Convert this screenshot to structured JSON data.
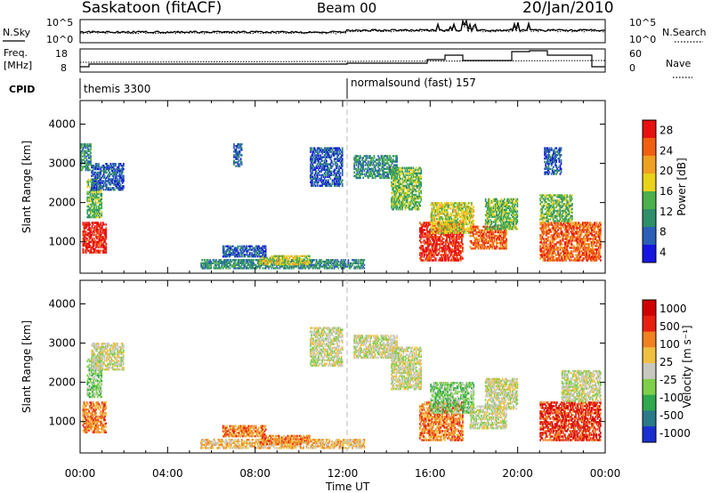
{
  "header": {
    "station": "Saskatoon (fitACF)",
    "beam": "Beam 00",
    "date": "20/Jan/2010"
  },
  "nsky_panel": {
    "left_label": "N.Sky",
    "left_ticks": [
      "10^5",
      "10^0"
    ],
    "right_ticks": [
      "10^5",
      "10^0"
    ],
    "right_label": "N.Search"
  },
  "freq_panel": {
    "left_label_line1": "Freq.",
    "left_label_line2": "[MHz]",
    "left_ticks": [
      "18",
      "8"
    ],
    "right_ticks": [
      "60",
      "0"
    ],
    "right_label": "Nave"
  },
  "cpid": {
    "label": "CPID",
    "segments": [
      {
        "text": "themis 3300"
      },
      {
        "text": "normalsound (fast) 157"
      }
    ]
  },
  "chart_data": [
    {
      "type": "heatmap",
      "panel": "power",
      "ylabel": "Slant Range [km]",
      "yticks": [
        "1000",
        "2000",
        "3000",
        "4000"
      ],
      "ylim": [
        200,
        4600
      ],
      "xlim": [
        0,
        24
      ],
      "xticks": [
        "00:00",
        "04:00",
        "08:00",
        "12:00",
        "16:00",
        "20:00",
        "00:00"
      ],
      "colorbar_label": "Power [dB]",
      "colorbar_ticks": [
        "28",
        "24",
        "20",
        "16",
        "12",
        "8",
        "4"
      ],
      "colors": [
        "#1616e0",
        "#2b5fb8",
        "#2f8f6a",
        "#4cb04c",
        "#e8d21a",
        "#f0a020",
        "#f06010",
        "#e81010"
      ],
      "regions": [
        {
          "t0": 0.1,
          "t1": 1.2,
          "r0": 700,
          "r1": 1500,
          "level": 7
        },
        {
          "t0": 0.3,
          "t1": 1.0,
          "r0": 1600,
          "r1": 2600,
          "level": 3
        },
        {
          "t0": 0.5,
          "t1": 2.0,
          "r0": 2300,
          "r1": 3000,
          "level": 1
        },
        {
          "t0": 0.0,
          "t1": 0.5,
          "r0": 2800,
          "r1": 3500,
          "level": 2
        },
        {
          "t0": 5.5,
          "t1": 13.0,
          "r0": 300,
          "r1": 550,
          "level": 2
        },
        {
          "t0": 8.2,
          "t1": 10.5,
          "r0": 400,
          "r1": 650,
          "level": 4
        },
        {
          "t0": 6.5,
          "t1": 8.5,
          "r0": 600,
          "r1": 900,
          "level": 1
        },
        {
          "t0": 7.0,
          "t1": 7.4,
          "r0": 2900,
          "r1": 3500,
          "level": 1
        },
        {
          "t0": 10.5,
          "t1": 12.0,
          "r0": 2400,
          "r1": 3400,
          "level": 1
        },
        {
          "t0": 12.5,
          "t1": 14.5,
          "r0": 2600,
          "r1": 3200,
          "level": 2
        },
        {
          "t0": 14.2,
          "t1": 15.6,
          "r0": 1800,
          "r1": 2900,
          "level": 3
        },
        {
          "t0": 15.5,
          "t1": 17.5,
          "r0": 500,
          "r1": 1500,
          "level": 7
        },
        {
          "t0": 16.0,
          "t1": 18.0,
          "r0": 1200,
          "r1": 2000,
          "level": 4
        },
        {
          "t0": 17.8,
          "t1": 19.5,
          "r0": 800,
          "r1": 1400,
          "level": 6
        },
        {
          "t0": 18.5,
          "t1": 20.0,
          "r0": 1300,
          "r1": 2100,
          "level": 3
        },
        {
          "t0": 21.0,
          "t1": 23.8,
          "r0": 500,
          "r1": 1500,
          "level": 6
        },
        {
          "t0": 21.0,
          "t1": 22.5,
          "r0": 1500,
          "r1": 2200,
          "level": 3
        },
        {
          "t0": 21.2,
          "t1": 22.0,
          "r0": 2700,
          "r1": 3400,
          "level": 1
        }
      ]
    },
    {
      "type": "heatmap",
      "panel": "velocity",
      "ylabel": "Slant Range [km]",
      "yticks": [
        "1000",
        "2000",
        "3000",
        "4000"
      ],
      "ylim": [
        200,
        4600
      ],
      "xlim": [
        0,
        24
      ],
      "xticks": [
        "00:00",
        "04:00",
        "08:00",
        "12:00",
        "16:00",
        "20:00",
        "00:00"
      ],
      "xlabel": "Time UT",
      "colorbar_label": "Velocity [m s⁻¹]",
      "colorbar_ticks": [
        "1000",
        "500",
        "100",
        "25",
        "-25",
        "-100",
        "-500",
        "-1000"
      ],
      "colors": [
        "#1a2fd0",
        "#2a7a8a",
        "#2fa84f",
        "#7ed04a",
        "#c8c8c0",
        "#f0c040",
        "#f08020",
        "#e82010",
        "#d00000"
      ],
      "regions": [
        {
          "t0": 0.1,
          "t1": 1.2,
          "r0": 700,
          "r1": 1500,
          "level": 6
        },
        {
          "t0": 0.3,
          "t1": 1.0,
          "r0": 1600,
          "r1": 2600,
          "level": 3
        },
        {
          "t0": 0.5,
          "t1": 2.0,
          "r0": 2300,
          "r1": 3000,
          "level": 4
        },
        {
          "t0": 5.5,
          "t1": 13.0,
          "r0": 300,
          "r1": 550,
          "level": 5
        },
        {
          "t0": 8.2,
          "t1": 10.5,
          "r0": 400,
          "r1": 650,
          "level": 6
        },
        {
          "t0": 6.5,
          "t1": 8.5,
          "r0": 600,
          "r1": 900,
          "level": 6
        },
        {
          "t0": 10.5,
          "t1": 12.0,
          "r0": 2400,
          "r1": 3400,
          "level": 4
        },
        {
          "t0": 12.5,
          "t1": 14.5,
          "r0": 2600,
          "r1": 3200,
          "level": 4
        },
        {
          "t0": 14.2,
          "t1": 15.6,
          "r0": 1800,
          "r1": 2900,
          "level": 4
        },
        {
          "t0": 15.5,
          "t1": 17.5,
          "r0": 500,
          "r1": 1500,
          "level": 6
        },
        {
          "t0": 16.0,
          "t1": 18.0,
          "r0": 1200,
          "r1": 2000,
          "level": 3
        },
        {
          "t0": 17.8,
          "t1": 19.5,
          "r0": 800,
          "r1": 1400,
          "level": 4
        },
        {
          "t0": 18.5,
          "t1": 20.0,
          "r0": 1300,
          "r1": 2100,
          "level": 4
        },
        {
          "t0": 21.0,
          "t1": 23.8,
          "r0": 500,
          "r1": 1500,
          "level": 7
        },
        {
          "t0": 22.0,
          "t1": 23.8,
          "r0": 1500,
          "r1": 2300,
          "level": 4
        }
      ]
    }
  ]
}
